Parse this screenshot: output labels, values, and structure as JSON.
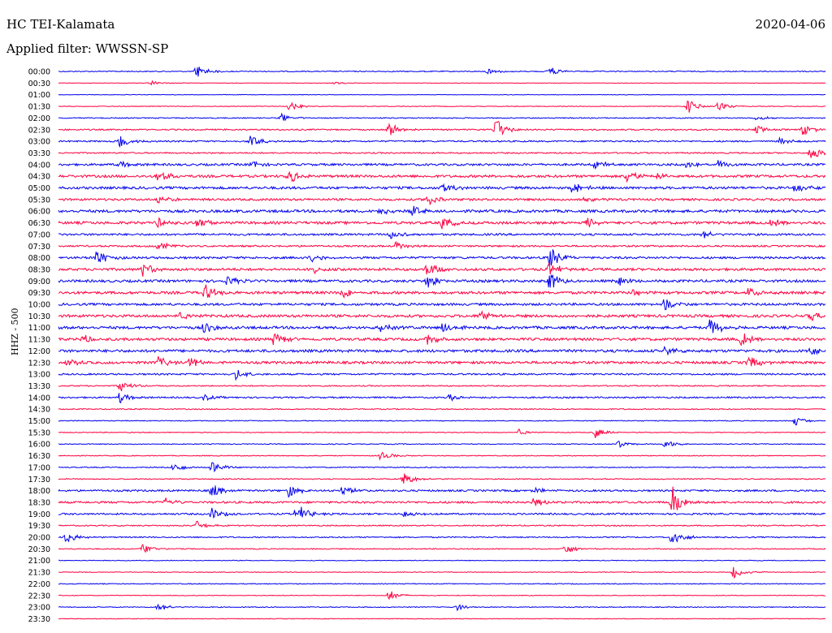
{
  "header": {
    "station": "HC TEI-Kalamata",
    "date": "2020-04-06",
    "filter": "Applied filter: WWSSN-SP",
    "channel_label": "HHZ - 500"
  },
  "colors": {
    "trace_even": "#0000ee",
    "trace_odd": "#ff0040"
  },
  "chart_data": {
    "type": "line",
    "title": "HC TEI-Kalamata",
    "ylabel": "HHZ - 500",
    "row_labels": [
      "00:00",
      "00:30",
      "01:00",
      "01:30",
      "02:00",
      "02:30",
      "03:00",
      "03:30",
      "04:00",
      "04:30",
      "05:00",
      "05:30",
      "06:00",
      "06:30",
      "07:00",
      "07:30",
      "08:00",
      "08:30",
      "09:00",
      "09:30",
      "10:00",
      "10:30",
      "11:00",
      "11:30",
      "12:00",
      "12:30",
      "13:00",
      "13:30",
      "14:00",
      "14:30",
      "15:00",
      "15:30",
      "16:00",
      "16:30",
      "17:00",
      "17:30",
      "18:00",
      "18:30",
      "19:00",
      "19:30",
      "20:00",
      "20:30",
      "21:00",
      "21:30",
      "22:00",
      "22:30",
      "23:00",
      "23:30"
    ],
    "noise_level": [
      0.6,
      0.3,
      0.3,
      0.4,
      0.6,
      0.8,
      0.9,
      0.8,
      1.3,
      1.5,
      1.5,
      1.3,
      1.6,
      1.6,
      1.2,
      1.0,
      1.3,
      1.5,
      1.5,
      1.6,
      1.4,
      1.6,
      1.6,
      1.6,
      1.6,
      1.5,
      1.0,
      0.7,
      0.9,
      0.6,
      0.5,
      0.5,
      0.5,
      0.5,
      0.6,
      0.6,
      1.1,
      1.2,
      1.0,
      0.7,
      0.7,
      0.6,
      0.4,
      0.4,
      0.5,
      0.4,
      0.5,
      0.4
    ],
    "events": [
      {
        "row": 0,
        "x": 0.18,
        "amp": 9
      },
      {
        "row": 0,
        "x": 0.56,
        "amp": 4
      },
      {
        "row": 0,
        "x": 0.64,
        "amp": 6
      },
      {
        "row": 1,
        "x": 0.12,
        "amp": 3
      },
      {
        "row": 1,
        "x": 0.36,
        "amp": 2
      },
      {
        "row": 3,
        "x": 0.3,
        "amp": 6
      },
      {
        "row": 3,
        "x": 0.82,
        "amp": 10
      },
      {
        "row": 3,
        "x": 0.86,
        "amp": 6
      },
      {
        "row": 4,
        "x": 0.29,
        "amp": 6
      },
      {
        "row": 4,
        "x": 0.91,
        "amp": 3
      },
      {
        "row": 5,
        "x": 0.43,
        "amp": 9
      },
      {
        "row": 5,
        "x": 0.57,
        "amp": 14
      },
      {
        "row": 5,
        "x": 0.91,
        "amp": 5
      },
      {
        "row": 5,
        "x": 0.97,
        "amp": 8
      },
      {
        "row": 6,
        "x": 0.08,
        "amp": 8
      },
      {
        "row": 6,
        "x": 0.25,
        "amp": 8
      },
      {
        "row": 6,
        "x": 0.94,
        "amp": 5
      },
      {
        "row": 7,
        "x": 0.98,
        "amp": 10
      },
      {
        "row": 8,
        "x": 0.08,
        "amp": 5
      },
      {
        "row": 8,
        "x": 0.25,
        "amp": 5
      },
      {
        "row": 8,
        "x": 0.7,
        "amp": 6
      },
      {
        "row": 8,
        "x": 0.82,
        "amp": 8
      },
      {
        "row": 8,
        "x": 0.86,
        "amp": 6
      },
      {
        "row": 9,
        "x": 0.13,
        "amp": 9
      },
      {
        "row": 9,
        "x": 0.3,
        "amp": 9
      },
      {
        "row": 9,
        "x": 0.74,
        "amp": 10
      },
      {
        "row": 9,
        "x": 0.78,
        "amp": 6
      },
      {
        "row": 10,
        "x": 0.5,
        "amp": 7
      },
      {
        "row": 10,
        "x": 0.67,
        "amp": 7
      },
      {
        "row": 10,
        "x": 0.96,
        "amp": 7
      },
      {
        "row": 11,
        "x": 0.13,
        "amp": 6
      },
      {
        "row": 11,
        "x": 0.48,
        "amp": 8
      },
      {
        "row": 11,
        "x": 0.68,
        "amp": 6
      },
      {
        "row": 12,
        "x": 0.46,
        "amp": 7
      },
      {
        "row": 12,
        "x": 0.42,
        "amp": 6
      },
      {
        "row": 13,
        "x": 0.13,
        "amp": 7
      },
      {
        "row": 13,
        "x": 0.18,
        "amp": 8
      },
      {
        "row": 13,
        "x": 0.5,
        "amp": 8
      },
      {
        "row": 13,
        "x": 0.69,
        "amp": 6
      },
      {
        "row": 13,
        "x": 0.93,
        "amp": 6
      },
      {
        "row": 14,
        "x": 0.43,
        "amp": 8
      },
      {
        "row": 14,
        "x": 0.84,
        "amp": 5
      },
      {
        "row": 15,
        "x": 0.13,
        "amp": 6
      },
      {
        "row": 15,
        "x": 0.44,
        "amp": 6
      },
      {
        "row": 16,
        "x": 0.05,
        "amp": 10
      },
      {
        "row": 16,
        "x": 0.33,
        "amp": 6
      },
      {
        "row": 16,
        "x": 0.64,
        "amp": 15
      },
      {
        "row": 17,
        "x": 0.11,
        "amp": 9
      },
      {
        "row": 17,
        "x": 0.33,
        "amp": 5
      },
      {
        "row": 17,
        "x": 0.48,
        "amp": 9
      },
      {
        "row": 17,
        "x": 0.64,
        "amp": 9
      },
      {
        "row": 18,
        "x": 0.22,
        "amp": 7
      },
      {
        "row": 18,
        "x": 0.48,
        "amp": 9
      },
      {
        "row": 18,
        "x": 0.64,
        "amp": 12
      },
      {
        "row": 18,
        "x": 0.73,
        "amp": 6
      },
      {
        "row": 19,
        "x": 0.19,
        "amp": 11
      },
      {
        "row": 19,
        "x": 0.37,
        "amp": 8
      },
      {
        "row": 19,
        "x": 0.75,
        "amp": 6
      },
      {
        "row": 19,
        "x": 0.9,
        "amp": 6
      },
      {
        "row": 20,
        "x": 0.79,
        "amp": 9
      },
      {
        "row": 21,
        "x": 0.16,
        "amp": 6
      },
      {
        "row": 21,
        "x": 0.55,
        "amp": 7
      },
      {
        "row": 21,
        "x": 0.98,
        "amp": 6
      },
      {
        "row": 22,
        "x": 0.19,
        "amp": 8
      },
      {
        "row": 22,
        "x": 0.42,
        "amp": 6
      },
      {
        "row": 22,
        "x": 0.5,
        "amp": 7
      },
      {
        "row": 22,
        "x": 0.85,
        "amp": 12
      },
      {
        "row": 23,
        "x": 0.03,
        "amp": 6
      },
      {
        "row": 23,
        "x": 0.28,
        "amp": 8
      },
      {
        "row": 23,
        "x": 0.48,
        "amp": 8
      },
      {
        "row": 23,
        "x": 0.89,
        "amp": 9
      },
      {
        "row": 24,
        "x": 0.79,
        "amp": 5
      },
      {
        "row": 24,
        "x": 0.98,
        "amp": 5
      },
      {
        "row": 25,
        "x": 0.01,
        "amp": 6
      },
      {
        "row": 25,
        "x": 0.13,
        "amp": 8
      },
      {
        "row": 25,
        "x": 0.17,
        "amp": 6
      },
      {
        "row": 25,
        "x": 0.9,
        "amp": 11
      },
      {
        "row": 26,
        "x": 0.23,
        "amp": 7
      },
      {
        "row": 27,
        "x": 0.08,
        "amp": 8
      },
      {
        "row": 28,
        "x": 0.08,
        "amp": 7
      },
      {
        "row": 28,
        "x": 0.19,
        "amp": 4
      },
      {
        "row": 28,
        "x": 0.51,
        "amp": 4
      },
      {
        "row": 30,
        "x": 0.96,
        "amp": 6
      },
      {
        "row": 31,
        "x": 0.7,
        "amp": 7
      },
      {
        "row": 31,
        "x": 0.6,
        "amp": 4
      },
      {
        "row": 32,
        "x": 0.73,
        "amp": 5
      },
      {
        "row": 32,
        "x": 0.79,
        "amp": 6
      },
      {
        "row": 33,
        "x": 0.42,
        "amp": 6
      },
      {
        "row": 34,
        "x": 0.15,
        "amp": 7
      },
      {
        "row": 34,
        "x": 0.2,
        "amp": 8
      },
      {
        "row": 35,
        "x": 0.45,
        "amp": 8
      },
      {
        "row": 36,
        "x": 0.2,
        "amp": 9
      },
      {
        "row": 36,
        "x": 0.3,
        "amp": 9
      },
      {
        "row": 36,
        "x": 0.37,
        "amp": 7
      },
      {
        "row": 36,
        "x": 0.62,
        "amp": 4
      },
      {
        "row": 37,
        "x": 0.14,
        "amp": 6
      },
      {
        "row": 37,
        "x": 0.62,
        "amp": 6
      },
      {
        "row": 37,
        "x": 0.8,
        "amp": 22
      },
      {
        "row": 38,
        "x": 0.2,
        "amp": 8
      },
      {
        "row": 38,
        "x": 0.31,
        "amp": 14
      },
      {
        "row": 38,
        "x": 0.45,
        "amp": 6
      },
      {
        "row": 39,
        "x": 0.18,
        "amp": 6
      },
      {
        "row": 40,
        "x": 0.01,
        "amp": 8
      },
      {
        "row": 40,
        "x": 0.8,
        "amp": 12
      },
      {
        "row": 41,
        "x": 0.11,
        "amp": 7
      },
      {
        "row": 41,
        "x": 0.66,
        "amp": 7
      },
      {
        "row": 43,
        "x": 0.88,
        "amp": 8
      },
      {
        "row": 45,
        "x": 0.43,
        "amp": 7
      },
      {
        "row": 46,
        "x": 0.13,
        "amp": 5
      },
      {
        "row": 46,
        "x": 0.52,
        "amp": 4
      }
    ]
  }
}
